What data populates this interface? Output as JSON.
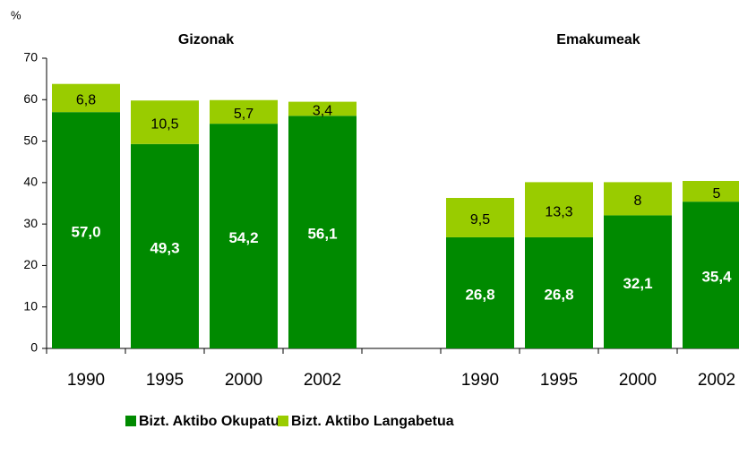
{
  "chart_data": {
    "type": "stacked_bar",
    "ylabel": "%",
    "annotations": [
      {
        "text": "Gizonak"
      },
      {
        "text": "Emakumeak"
      }
    ],
    "categories": [
      "1990",
      "1995",
      "2000",
      "2002",
      null,
      "1990",
      "1995",
      "2000",
      "2002"
    ],
    "series": [
      {
        "name": "Bizt. Aktibo Okupatua",
        "color": "#008a00",
        "values": [
          57.0,
          49.3,
          54.2,
          56.1,
          null,
          26.8,
          26.8,
          32.1,
          35.4
        ],
        "value_labels": [
          "57,0",
          "49,3",
          "54,2",
          "56,1",
          null,
          "26,8",
          "26,8",
          "32,1",
          "35,4"
        ]
      },
      {
        "name": "Bizt. Aktibo Langabetua",
        "color": "#99cc00",
        "values": [
          6.8,
          10.5,
          5.7,
          3.4,
          null,
          9.5,
          13.3,
          8,
          5
        ],
        "value_labels": [
          "6,8",
          "10,5",
          "5,7",
          "3,4",
          null,
          "9,5",
          "13,3",
          "8",
          "5"
        ]
      }
    ],
    "ylim": [
      0,
      70
    ],
    "yticks": [
      0,
      10,
      20,
      30,
      40,
      50,
      60,
      70
    ],
    "legend": "bottom"
  }
}
